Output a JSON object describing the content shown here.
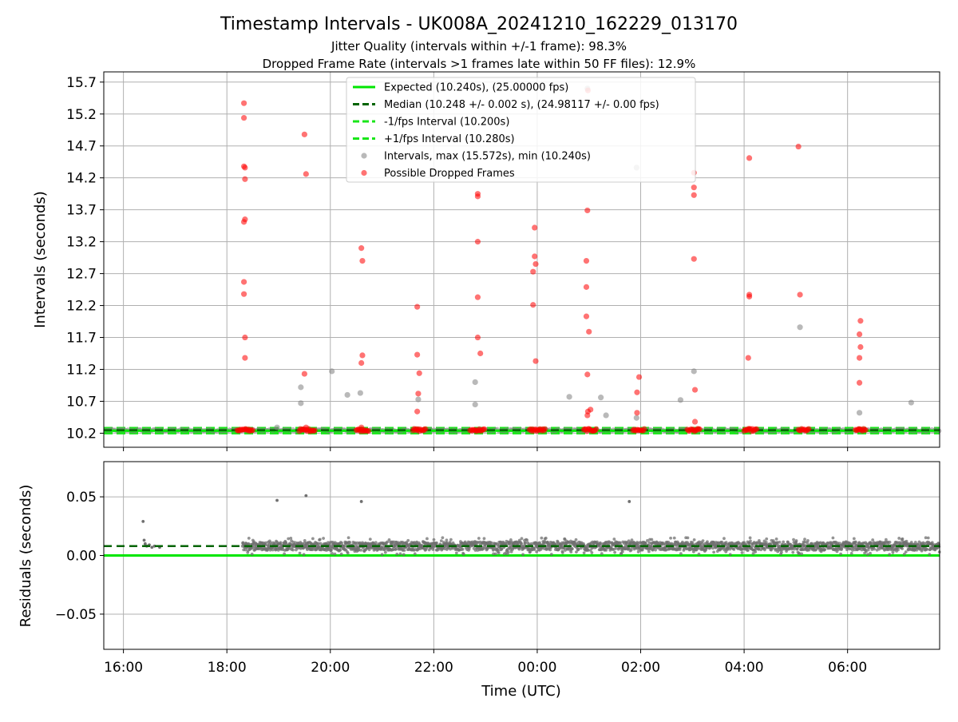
{
  "chart_data": [
    {
      "type": "scatter",
      "panel": "intervals",
      "title": "Timestamp Intervals - UK008A_20241210_162229_013170",
      "subtitle_1": "Jitter Quality (intervals within +/-1 frame): 98.3%",
      "subtitle_2": "Dropped Frame Rate (intervals >1 frames late within 50 FF files): 12.9%",
      "ylabel": "Intervals (seconds)",
      "ylim": [
        9.98,
        15.86
      ],
      "xlim_hours": [
        15.62,
        31.78
      ],
      "grid": true,
      "legend_placement": "top-center",
      "y_ticks": [
        "10.2",
        "10.7",
        "11.2",
        "11.7",
        "12.2",
        "12.7",
        "13.2",
        "13.7",
        "14.2",
        "14.7",
        "15.2",
        "15.7"
      ],
      "y_tick_values": [
        10.2,
        10.7,
        11.2,
        11.7,
        12.2,
        12.7,
        13.2,
        13.7,
        14.2,
        14.7,
        15.2,
        15.7
      ],
      "legend": [
        {
          "label": "Expected (10.240s), (25.00000 fps)",
          "kind": "solid",
          "color": "#00e600"
        },
        {
          "label": "Median (10.248 +/- 0.002 s), (24.98117 +/- 0.00 fps)",
          "kind": "dashed",
          "color": "#006400"
        },
        {
          "label": "-1/fps Interval (10.200s)",
          "kind": "dashed",
          "color": "#19e619"
        },
        {
          "label": "+1/fps Interval (10.280s)",
          "kind": "dashed",
          "color": "#19e619"
        },
        {
          "label": "Intervals, max (15.572s), min (10.240s)",
          "kind": "marker",
          "color": "#808080"
        },
        {
          "label": "Possible Dropped Frames",
          "kind": "marker",
          "color": "#ff0000"
        }
      ],
      "reference_lines": {
        "expected": 10.24,
        "median": 10.248,
        "minus_one_fps": 10.2,
        "plus_one_fps": 10.28
      },
      "series": [
        {
          "name": "Intervals, max (15.572s), min (10.240s)",
          "color": "#808080",
          "points": [
            [
              19.43,
              10.92
            ],
            [
              19.43,
              10.67
            ],
            [
              20.03,
              11.17
            ],
            [
              20.33,
              10.8
            ],
            [
              20.58,
              10.83
            ],
            [
              21.7,
              10.73
            ],
            [
              22.8,
              11.0
            ],
            [
              22.8,
              10.65
            ],
            [
              24.62,
              10.77
            ],
            [
              25.23,
              10.76
            ],
            [
              25.33,
              10.48
            ],
            [
              25.92,
              10.44
            ],
            [
              25.92,
              14.36
            ],
            [
              26.77,
              10.72
            ],
            [
              27.03,
              11.17
            ],
            [
              29.08,
              11.86
            ],
            [
              30.23,
              10.52
            ],
            [
              31.23,
              10.68
            ],
            [
              18.97,
              10.29
            ],
            [
              24.97,
              15.6
            ]
          ]
        },
        {
          "name": "Possible Dropped Frames",
          "color": "#ff0000",
          "points": [
            [
              18.33,
              15.37
            ],
            [
              18.33,
              15.14
            ],
            [
              18.33,
              14.38
            ],
            [
              18.35,
              14.36
            ],
            [
              18.35,
              14.18
            ],
            [
              18.33,
              13.51
            ],
            [
              18.35,
              13.55
            ],
            [
              18.33,
              12.57
            ],
            [
              18.33,
              12.38
            ],
            [
              18.35,
              11.7
            ],
            [
              18.35,
              11.38
            ],
            [
              19.5,
              14.88
            ],
            [
              19.53,
              14.26
            ],
            [
              19.5,
              11.13
            ],
            [
              19.53,
              10.29
            ],
            [
              20.6,
              13.1
            ],
            [
              20.62,
              12.9
            ],
            [
              20.62,
              11.42
            ],
            [
              20.6,
              11.3
            ],
            [
              20.6,
              10.29
            ],
            [
              21.68,
              12.18
            ],
            [
              21.68,
              11.43
            ],
            [
              21.72,
              11.14
            ],
            [
              21.7,
              10.82
            ],
            [
              21.68,
              10.54
            ],
            [
              22.85,
              13.95
            ],
            [
              22.85,
              13.91
            ],
            [
              22.85,
              13.2
            ],
            [
              22.85,
              12.33
            ],
            [
              22.85,
              11.7
            ],
            [
              22.9,
              11.45
            ],
            [
              23.95,
              13.42
            ],
            [
              23.95,
              12.97
            ],
            [
              23.97,
              12.85
            ],
            [
              23.92,
              12.73
            ],
            [
              23.92,
              12.21
            ],
            [
              23.97,
              11.33
            ],
            [
              24.98,
              15.57
            ],
            [
              24.97,
              13.69
            ],
            [
              24.95,
              12.9
            ],
            [
              24.95,
              12.49
            ],
            [
              24.95,
              12.03
            ],
            [
              25.0,
              11.79
            ],
            [
              24.97,
              11.12
            ],
            [
              25.03,
              10.57
            ],
            [
              24.98,
              10.54
            ],
            [
              24.97,
              10.48
            ],
            [
              25.97,
              11.08
            ],
            [
              25.93,
              10.84
            ],
            [
              25.93,
              10.52
            ],
            [
              27.03,
              14.28
            ],
            [
              27.03,
              14.05
            ],
            [
              27.03,
              13.93
            ],
            [
              27.03,
              12.93
            ],
            [
              27.05,
              10.88
            ],
            [
              27.05,
              10.38
            ],
            [
              28.1,
              14.51
            ],
            [
              28.1,
              12.37
            ],
            [
              28.1,
              12.34
            ],
            [
              28.08,
              11.38
            ],
            [
              29.05,
              14.69
            ],
            [
              29.08,
              12.37
            ],
            [
              30.25,
              11.96
            ],
            [
              30.23,
              11.75
            ],
            [
              30.25,
              11.55
            ],
            [
              30.23,
              11.38
            ],
            [
              30.23,
              10.99
            ]
          ]
        },
        {
          "name": "",
          "color": "#ff0000",
          "band_y": 10.25,
          "note": "",
          "clusters": [
            [
              18.2,
              18.5
            ],
            [
              19.4,
              19.7
            ],
            [
              20.5,
              20.75
            ],
            [
              21.6,
              21.85
            ],
            [
              22.7,
              22.98
            ],
            [
              23.85,
              24.15
            ],
            [
              24.9,
              25.15
            ],
            [
              25.85,
              26.08
            ],
            [
              26.9,
              27.15
            ],
            [
              28.0,
              28.25
            ],
            [
              29.05,
              29.25
            ],
            [
              30.15,
              30.35
            ]
          ]
        }
      ]
    },
    {
      "type": "scatter",
      "panel": "residuals",
      "xlabel": "Time (UTC)",
      "ylabel": "Residuals (seconds)",
      "ylim": [
        -0.08,
        0.08
      ],
      "grid": true,
      "y_ticks": [
        "−0.05",
        "0.00",
        "0.05"
      ],
      "y_tick_values": [
        -0.05,
        0.0,
        0.05
      ],
      "x_ticks": [
        "16:00",
        "18:00",
        "20:00",
        "22:00",
        "00:00",
        "02:00",
        "04:00",
        "06:00"
      ],
      "x_tick_hours": [
        16,
        18,
        20,
        22,
        24,
        26,
        28,
        30
      ],
      "reference_lines": {
        "expected": 0.0,
        "median": 0.008
      },
      "series": [
        {
          "name": "",
          "color": "#707070",
          "band": {
            "x_from": 18.3,
            "x_to": 31.78,
            "y_center": 0.008,
            "y_spread": 0.006
          },
          "early_points": [
            [
              16.38,
              0.029
            ],
            [
              16.4,
              0.013
            ],
            [
              16.42,
              0.01
            ],
            [
              16.45,
              0.008
            ],
            [
              16.5,
              0.009
            ],
            [
              16.55,
              0.007
            ],
            [
              16.6,
              0.008
            ],
            [
              16.7,
              0.007
            ]
          ],
          "outliers": [
            [
              18.97,
              0.047
            ],
            [
              19.53,
              0.051
            ],
            [
              20.6,
              0.046
            ],
            [
              25.78,
              0.046
            ]
          ]
        }
      ]
    }
  ]
}
